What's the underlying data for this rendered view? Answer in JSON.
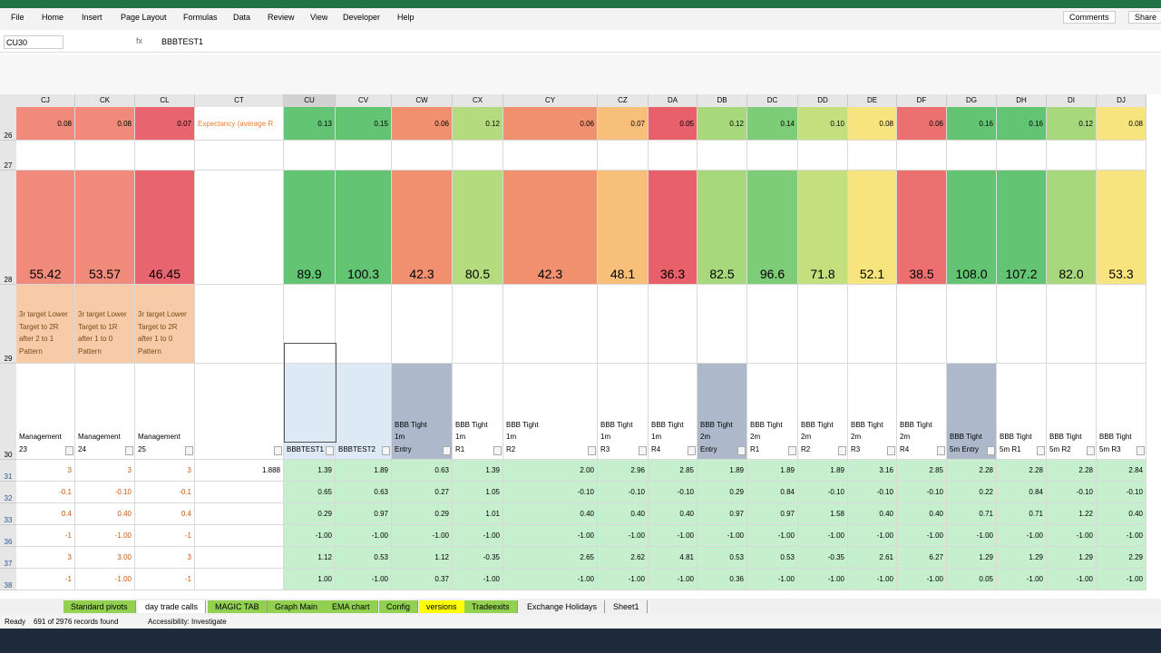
{
  "ribbon": {
    "tabs": [
      "File",
      "Home",
      "Insert",
      "Page Layout",
      "Formulas",
      "Data",
      "Review",
      "View",
      "Developer",
      "Help"
    ],
    "comments": "Comments",
    "share": "Share"
  },
  "formula_bar": {
    "name_box": "CU30",
    "formula": "BBBTEST1"
  },
  "grid": {
    "columns": [
      "CJ",
      "CK",
      "CL",
      "CT",
      "CU",
      "CV",
      "CW",
      "CX",
      "CY",
      "CZ",
      "DA",
      "DB",
      "DC",
      "DD",
      "DE",
      "DF",
      "DG",
      "DH",
      "DI",
      "DJ"
    ],
    "rows": [
      "26",
      "27",
      "28",
      "29",
      "30",
      "31",
      "32",
      "33",
      "36",
      "37",
      "38"
    ],
    "band_colors": [
      "#f08a7a",
      "#f08a7a",
      "#e8646e",
      "#ffffff",
      "#63c474",
      "#63c474",
      "#f0906e",
      "#b4dc7e",
      "#f0906e",
      "#f8bf7a",
      "#e8606a",
      "#a8d87c",
      "#7ccc78",
      "#c4e07e",
      "#f8e47e",
      "#ec7070",
      "#63c474",
      "#63c474",
      "#a8d87c",
      "#f8e47e"
    ],
    "header_colors": [
      "#ffffff",
      "#ffffff",
      "#ffffff",
      "#ffffff",
      "#dde9f5",
      "#dde9f5",
      "#adb9ca",
      "#ffffff",
      "#ffffff",
      "#ffffff",
      "#ffffff",
      "#adb9ca",
      "#ffffff",
      "#ffffff",
      "#ffffff",
      "#ffffff",
      "#adb9ca",
      "#ffffff",
      "#ffffff",
      "#ffffff"
    ],
    "row26": [
      "0.08",
      "0.08",
      "0.07",
      "Expectancy (average R",
      "0.13",
      "0.15",
      "0.06",
      "0.12",
      "0.06",
      "0.07",
      "0.05",
      "0.12",
      "0.14",
      "0.10",
      "0.08",
      "0.06",
      "0.16",
      "0.16",
      "0.12",
      "0.08"
    ],
    "row28": [
      "55.42",
      "53.57",
      "46.45",
      "",
      "89.9",
      "100.3",
      "42.3",
      "80.5",
      "42.3",
      "48.1",
      "36.3",
      "82.5",
      "96.6",
      "71.8",
      "52.1",
      "38.5",
      "108.0",
      "107.2",
      "82.0",
      "53.3"
    ],
    "row29": [
      "3r target Lower Target to 2R after 2 to 1 Pattern",
      "3r target Lower Target to 1R after 1 to 0 Pattern",
      "3r target Lower Target to 2R after 1 to 0 Pattern"
    ],
    "row30": [
      [
        "Management",
        "23"
      ],
      [
        "Management",
        "24"
      ],
      [
        "Management",
        "25"
      ],
      [
        ""
      ],
      [
        "BBBTEST1"
      ],
      [
        "BBBTEST2"
      ],
      [
        "BBB Tight",
        "1m",
        "Entry"
      ],
      [
        "BBB Tight",
        "1m",
        "R1"
      ],
      [
        "BBB Tight",
        "1m",
        "R2"
      ],
      [
        "BBB Tight",
        "1m",
        "R3"
      ],
      [
        "BBB Tight",
        "1m",
        "R4"
      ],
      [
        "BBB Tight",
        "2m",
        "Entry"
      ],
      [
        "BBB Tight",
        "2m",
        "R1"
      ],
      [
        "BBB Tight",
        "2m",
        "R2"
      ],
      [
        "BBB Tight",
        "2m",
        "R3"
      ],
      [
        "BBB Tight",
        "2m",
        "R4"
      ],
      [
        "BBB Tight",
        "5m Entry"
      ],
      [
        "BBB Tight",
        "5m R1"
      ],
      [
        "BBB Tight",
        "5m R2"
      ],
      [
        "BBB Tight",
        "5m R3"
      ]
    ],
    "data_rows": [
      [
        "3",
        "3",
        "3",
        "1.888",
        "1.39",
        "1.89",
        "0.63",
        "1.39",
        "2.00",
        "2.96",
        "2.85",
        "1.89",
        "1.89",
        "1.89",
        "3.16",
        "2.85",
        "2.28",
        "2.28",
        "2.28",
        "2.84"
      ],
      [
        "-0.1",
        "-0.10",
        "-0.1",
        "",
        "0.65",
        "0.63",
        "0.27",
        "1.05",
        "-0.10",
        "-0.10",
        "-0.10",
        "0.29",
        "0.84",
        "-0.10",
        "-0.10",
        "-0.10",
        "0.22",
        "0.84",
        "-0.10",
        "-0.10"
      ],
      [
        "0.4",
        "0.40",
        "0.4",
        "",
        "0.29",
        "0.97",
        "0.29",
        "1.01",
        "0.40",
        "0.40",
        "0.40",
        "0.97",
        "0.97",
        "1.58",
        "0.40",
        "0.40",
        "0.71",
        "0.71",
        "1.22",
        "0.40"
      ],
      [
        "-1",
        "-1.00",
        "-1",
        "",
        "-1.00",
        "-1.00",
        "-1.00",
        "-1.00",
        "-1.00",
        "-1.00",
        "-1.00",
        "-1.00",
        "-1.00",
        "-1.00",
        "-1.00",
        "-1.00",
        "-1.00",
        "-1.00",
        "-1.00",
        "-1.00"
      ],
      [
        "3",
        "3.00",
        "3",
        "",
        "1.12",
        "0.53",
        "1.12",
        "-0.35",
        "2.65",
        "2.62",
        "4.81",
        "0.53",
        "0.53",
        "-0.35",
        "2.61",
        "6.27",
        "1.29",
        "1.29",
        "1.29",
        "2.29"
      ],
      [
        "-1",
        "-1.00",
        "-1",
        "",
        "1.00",
        "-1.00",
        "0.37",
        "-1.00",
        "-1.00",
        "-1.00",
        "-1.00",
        "0.36",
        "-1.00",
        "-1.00",
        "-1.00",
        "-1.00",
        "0.05",
        "-1.00",
        "-1.00",
        "-1.00"
      ]
    ]
  },
  "sheet_tabs": [
    "Standard pivots",
    "day trade calls",
    "MAGIC TAB",
    "Graph Main",
    "EMA chart",
    "Config",
    "versions",
    "Tradeexits",
    "Exchange Holidays",
    "Sheet1"
  ],
  "status": {
    "ready": "Ready",
    "records": "691 of 2976 records found",
    "accessibility": "Accessibility: Investigate"
  }
}
